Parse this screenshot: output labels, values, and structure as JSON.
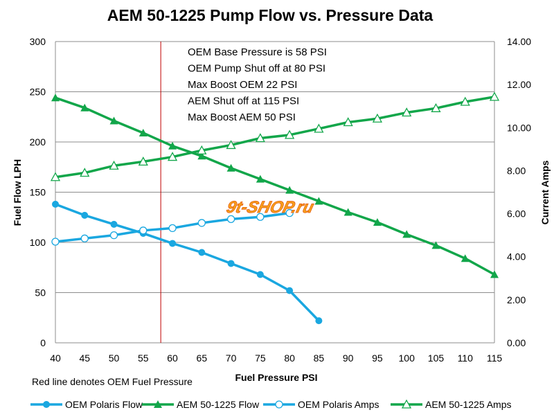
{
  "chart_data": {
    "type": "line",
    "title": "AEM 50-1225 Pump Flow vs. Pressure Data",
    "xlabel": "Fuel Pressure PSI",
    "ylabel": "Fuel Flow LPH",
    "y2label": "Current Amps",
    "x_ticks": [
      "40",
      "45",
      "50",
      "55",
      "60",
      "65",
      "70",
      "75",
      "80",
      "85",
      "90",
      "95",
      "100",
      "105",
      "110",
      "115"
    ],
    "xlim": [
      40,
      115
    ],
    "ylim": [
      0,
      300
    ],
    "y_ticks": [
      "0",
      "50",
      "100",
      "150",
      "200",
      "250",
      "300"
    ],
    "y2lim": [
      0,
      14
    ],
    "y2_ticks": [
      "0.00",
      "2.00",
      "4.00",
      "6.00",
      "8.00",
      "10.00",
      "12.00",
      "14.00"
    ],
    "grid": "horizontal",
    "legend_position": "bottom",
    "reference_line": {
      "x": 58,
      "color": "#c00000"
    },
    "annotations": [
      "OEM Base Pressure is 58 PSI",
      "OEM Pump Shut off at 80 PSI",
      "Max Boost OEM 22 PSI",
      "AEM Shut off at 115 PSI",
      "Max Boost AEM 50 PSI"
    ],
    "footnote": "Red line denotes OEM Fuel Pressure",
    "watermark": "9t-SHOP.ru",
    "series": [
      {
        "name": "OEM Polaris Flow",
        "axis": "left",
        "color": "#1aa7e0",
        "marker": "filled-circle",
        "x": [
          40,
          45,
          50,
          55,
          60,
          65,
          70,
          75,
          80,
          85
        ],
        "values": [
          138,
          127,
          118,
          109,
          99,
          90,
          79,
          68,
          52,
          22
        ]
      },
      {
        "name": "AEM 50-1225 Flow",
        "axis": "left",
        "color": "#12a64a",
        "marker": "filled-triangle",
        "x": [
          40,
          45,
          50,
          55,
          60,
          65,
          70,
          75,
          80,
          85,
          90,
          95,
          100,
          105,
          110,
          115
        ],
        "values": [
          244,
          234,
          221,
          209,
          196,
          186,
          174,
          163,
          152,
          141,
          130,
          120,
          108,
          97,
          84,
          68
        ]
      },
      {
        "name": "OEM Polaris Amps",
        "axis": "right",
        "color": "#1aa7e0",
        "marker": "open-circle",
        "x": [
          40,
          45,
          50,
          55,
          60,
          65,
          70,
          75,
          80
        ],
        "values": [
          4.7,
          4.85,
          5.0,
          5.22,
          5.33,
          5.57,
          5.75,
          5.85,
          6.03
        ]
      },
      {
        "name": "AEM 50-1225 Amps",
        "axis": "right",
        "color": "#12a64a",
        "marker": "open-triangle",
        "x": [
          40,
          45,
          50,
          55,
          60,
          65,
          70,
          75,
          80,
          85,
          90,
          95,
          100,
          105,
          110,
          115
        ],
        "values": [
          7.7,
          7.9,
          8.23,
          8.42,
          8.64,
          8.94,
          9.19,
          9.51,
          9.66,
          9.95,
          10.25,
          10.42,
          10.7,
          10.9,
          11.2,
          11.43
        ]
      }
    ]
  }
}
